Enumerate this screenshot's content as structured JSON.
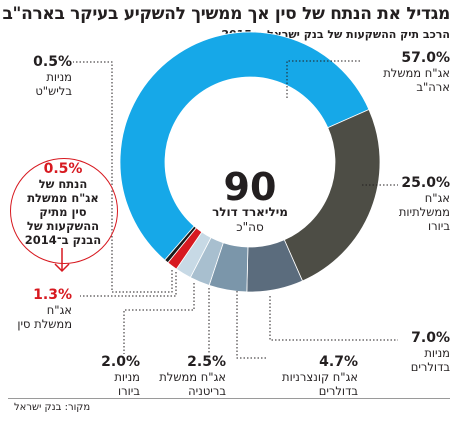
{
  "title": "מגדיל את הנתח של סין אך ממשיך להשקיע בעיקר בארה\"ב",
  "subtitle": "הרכב תיק ההשקעות של בנק ישראל ב־2015",
  "center": {
    "value": "90",
    "unit": "מיליארד דולר",
    "note": "סה\"כ"
  },
  "callout": {
    "pct": "0.5%",
    "lines": [
      "הנתח של",
      "אג\"ח ממשלת",
      "סין מתיק",
      "ההשקעות של",
      "הבנק ב־2014"
    ]
  },
  "labels": {
    "usa": {
      "pct": "57.0%",
      "lines": [
        "אג\"ח ממשלת",
        "ארה\"ב"
      ]
    },
    "euro_gov": {
      "pct": "25.0%",
      "lines": [
        "אג\"ח",
        "ממשלתיות",
        "ביורו"
      ]
    },
    "usd_stocks": {
      "pct": "7.0%",
      "lines": [
        "מניות",
        "בדולרים"
      ]
    },
    "usd_corp": {
      "pct": "4.7%",
      "lines": [
        "אג\"ח קונצרניות",
        "בדולרים"
      ]
    },
    "uk_gov": {
      "pct": "2.5%",
      "lines": [
        "אג\"ח ממשלת",
        "בריטניה"
      ]
    },
    "euro_stocks": {
      "pct": "2.0%",
      "lines": [
        "מניות",
        "ביורו"
      ]
    },
    "china": {
      "pct": "1.3%",
      "lines": [
        "אג\"ח",
        "ממשלת סין"
      ]
    },
    "gbp_stocks": {
      "pct": "0.5%",
      "lines": [
        "מניות",
        "בליש\"ט"
      ]
    }
  },
  "source": "מקור: בנק ישראל",
  "colors": {
    "usa": "#16a8e8",
    "euro_gov": "#4d4d45",
    "usd_stocks": "#5b6c7d",
    "usd_corp": "#7b96aa",
    "uk_gov": "#a8bfcf",
    "euro_stocks": "#c7d9e5",
    "china": "#d71920",
    "gbp_stocks": "#1a1a1a",
    "accent_red": "#d71920"
  },
  "chart_data": {
    "type": "pie",
    "title": "מגדיל את הנתח של סין אך ממשיך להשקיע בעיקר בארה\"ב",
    "subtitle": "הרכב תיק ההשקעות של בנק ישראל ב־2015",
    "total": 90,
    "total_unit": "מיליארד דולר",
    "slices": [
      {
        "label": "אג\"ח ממשלת ארה\"ב",
        "value": 57.0
      },
      {
        "label": "אג\"ח ממשלתיות ביורו",
        "value": 25.0
      },
      {
        "label": "מניות בדולרים",
        "value": 7.0
      },
      {
        "label": "אג\"ח קונצרניות בדולרים",
        "value": 4.7
      },
      {
        "label": "אג\"ח ממשלת בריטניה",
        "value": 2.5
      },
      {
        "label": "מניות ביורו",
        "value": 2.0
      },
      {
        "label": "אג\"ח ממשלת סין",
        "value": 1.3
      },
      {
        "label": "מניות בליש\"ט",
        "value": 0.5
      }
    ],
    "annotation": {
      "value": 0.5,
      "text": "הנתח של אג\"ח ממשלת סין מתיק ההשקעות של הבנק ב־2014"
    }
  }
}
